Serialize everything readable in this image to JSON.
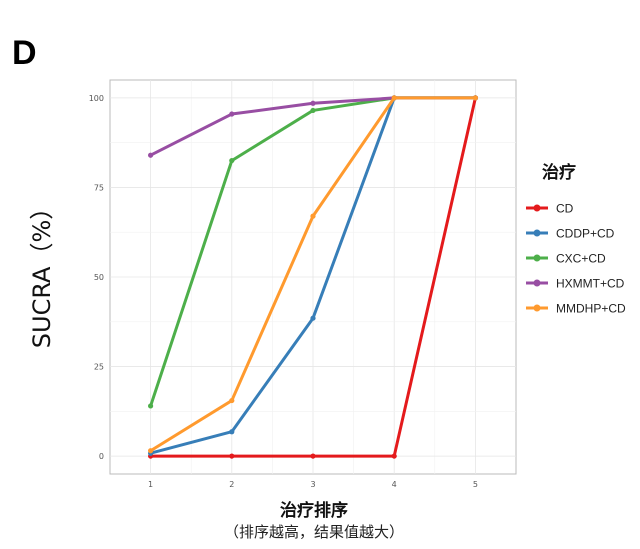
{
  "chart_data": {
    "type": "line",
    "panel_label": "D",
    "ylabel": "SUCRA（%）",
    "xlabel": "治疗排序",
    "xlabel_note": "（排序越高，结果值越大）",
    "x": [
      1,
      2,
      3,
      4,
      5
    ],
    "xlim": [
      0.5,
      5.5
    ],
    "ylim": [
      -5,
      105
    ],
    "yticks": [
      0,
      25,
      50,
      75,
      100
    ],
    "grid": true,
    "legend_title": "治疗",
    "legend_position": "right",
    "series": [
      {
        "name": "CD",
        "color": "#e41a1c",
        "values": [
          0,
          0,
          0,
          0,
          100
        ]
      },
      {
        "name": "CDDP+CD",
        "color": "#377eb8",
        "values": [
          0.8,
          6.8,
          38.5,
          100,
          100
        ]
      },
      {
        "name": "CXC+CD",
        "color": "#4daf4a",
        "values": [
          14,
          82.5,
          96.5,
          100,
          100
        ]
      },
      {
        "name": "HXMMT+CD",
        "color": "#984ea3",
        "values": [
          84,
          95.5,
          98.5,
          100,
          100
        ]
      },
      {
        "name": "MMDHP+CD",
        "color": "#ff9a2e",
        "values": [
          1.5,
          15.5,
          67,
          100,
          100
        ]
      }
    ]
  }
}
